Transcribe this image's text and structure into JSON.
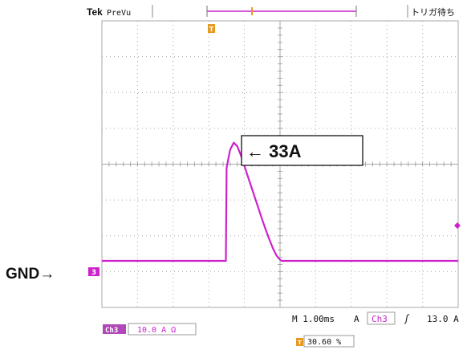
{
  "header": {
    "brand": "Tek",
    "mode": "PreVu",
    "trigger_status": "トリガ待ち",
    "trigger_position_marker": "T"
  },
  "annotations": {
    "peak_label": "← 33A",
    "ground_label": "GND→",
    "channel_marker": "3"
  },
  "footer": {
    "timebase": "M 1.00ms",
    "trigger_mode": "A",
    "trigger_channel": "Ch3",
    "trigger_slope_symbol": "ʃ",
    "trigger_level": "13.0 A",
    "channel_tag": "Ch3",
    "channel_scale": "10.0 A Ω",
    "position_marker": "T",
    "horizontal_position": "30.60 %"
  },
  "colors": {
    "trace": "#cc22cc",
    "marker_orange": "#e89a20",
    "graticule": "#a8a8a8",
    "text": "#111111"
  },
  "chart_data": {
    "type": "line",
    "xlabel": "",
    "ylabel": "",
    "x_unit": "ms",
    "y_unit": "A",
    "x_per_div": 1.0,
    "y_per_div": 10.0,
    "xlim": [
      0,
      10
    ],
    "ylim": [
      -1.3,
      6.7
    ],
    "grid": true,
    "series": [
      {
        "x": [
          0,
          1,
          2,
          3,
          3.48,
          3.5,
          3.6,
          3.7,
          3.8,
          3.9,
          4.0,
          4.1,
          4.2,
          4.3,
          4.4,
          4.5,
          4.6,
          4.7,
          4.8,
          4.9,
          5.0,
          5.05,
          5.1,
          6,
          7,
          8,
          9,
          10
        ],
        "y": [
          0,
          0,
          0,
          0,
          0,
          2.6,
          3.1,
          3.3,
          3.2,
          2.95,
          2.65,
          2.35,
          2.05,
          1.75,
          1.45,
          1.15,
          0.87,
          0.6,
          0.35,
          0.15,
          0.03,
          0,
          0,
          0,
          0,
          0,
          0,
          0
        ]
      }
    ]
  }
}
